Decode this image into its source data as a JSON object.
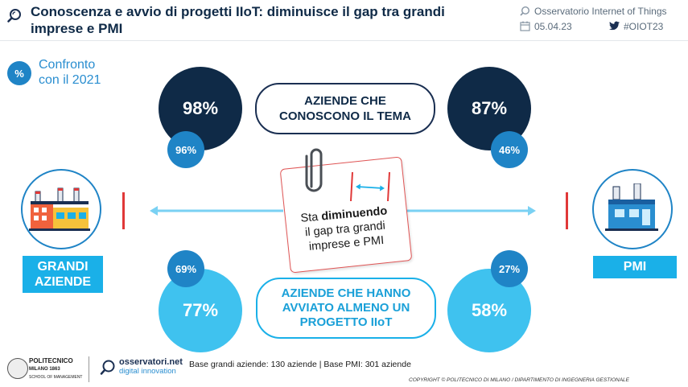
{
  "header": {
    "title": "Conoscenza e avvio di progetti IIoT: diminuisce il gap tra grandi imprese e PMI",
    "observatory": "Osservatorio Internet of Things",
    "date": "05.04.23",
    "hashtag": "#OIOT23"
  },
  "badge": {
    "symbol": "%",
    "text": "Confronto con il 2021"
  },
  "top": {
    "label": "AZIENDE CHE CONOSCONO IL TEMA",
    "large_value": "98%",
    "large_prev": "96%",
    "pmi_value": "87%",
    "pmi_prev": "46%"
  },
  "bottom": {
    "label": "AZIENDE CHE HANNO AVVIATO ALMENO UN PROGETTO IIoT",
    "large_value": "77%",
    "large_prev": "69%",
    "pmi_value": "58%",
    "pmi_prev": "27%"
  },
  "note": {
    "prefix": "Sta ",
    "bold": "diminuendo",
    "rest": "il gap tra grandi imprese e PMI"
  },
  "left_label": "GRANDI AZIENDE",
  "right_label": "PMI",
  "footer": {
    "base": "Base grandi aziende: 130 aziende | Base PMI: 301 aziende",
    "copyright": "COPYRIGHT © POLITECNICO DI MILANO / DIPARTIMENTO DI INGEGNERIA GESTIONALE",
    "polimi_name": "POLITECNICO",
    "polimi_sub": "MILANO 1863",
    "polimi_school": "SCHOOL OF MANAGEMENT",
    "oss_name": "osservatori.net",
    "oss_sub": "digital innovation"
  },
  "colors": {
    "navy": "#0f2a47",
    "blue": "#1f84c6",
    "cyan": "#1ab0e8",
    "light_cyan": "#3fc2ef",
    "red": "#e03838"
  }
}
